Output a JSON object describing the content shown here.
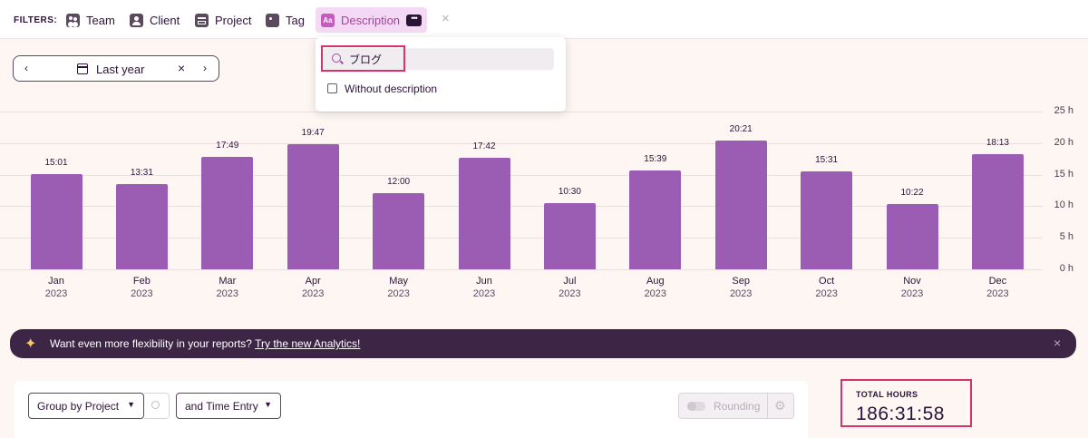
{
  "filters": {
    "label": "FILTERS:",
    "items": [
      {
        "label": "Team",
        "icon": "team-icon"
      },
      {
        "label": "Client",
        "icon": "client-icon"
      },
      {
        "label": "Project",
        "icon": "project-icon"
      },
      {
        "label": "Tag",
        "icon": "tag-icon"
      },
      {
        "label": "Description",
        "icon": "description-icon"
      }
    ],
    "description_icon_text": "Aa",
    "more_text": "•••",
    "clear_text": "×"
  },
  "dropdown": {
    "search_value": "ブログ",
    "checkbox_label": "Without description"
  },
  "date_picker": {
    "prev": "‹",
    "next": "›",
    "label": "Last year",
    "clear": "×"
  },
  "chart_data": {
    "type": "bar",
    "categories": [
      "Jan",
      "Feb",
      "Mar",
      "Apr",
      "May",
      "Jun",
      "Jul",
      "Aug",
      "Sep",
      "Oct",
      "Nov",
      "Dec"
    ],
    "years": [
      "2023",
      "2023",
      "2023",
      "2023",
      "2023",
      "2023",
      "2023",
      "2023",
      "2023",
      "2023",
      "2023",
      "2023"
    ],
    "values": [
      15.017,
      13.517,
      17.817,
      19.783,
      12.0,
      17.7,
      10.5,
      15.65,
      20.35,
      15.517,
      10.367,
      18.217
    ],
    "value_labels": [
      "15:01",
      "13:31",
      "17:49",
      "19:47",
      "12:00",
      "17:42",
      "10:30",
      "15:39",
      "20:21",
      "15:31",
      "10:22",
      "18:13"
    ],
    "yticks": [
      "0 h",
      "5 h",
      "10 h",
      "15 h",
      "20 h",
      "25 h"
    ],
    "ylim": [
      0,
      25
    ],
    "title": "",
    "xlabel": "",
    "ylabel": "",
    "color": "#9b5cb4"
  },
  "banner": {
    "text": "Want even more flexibility in your reports? ",
    "link": "Try the new Analytics!",
    "close": "×"
  },
  "panel": {
    "group_by": "Group by Project",
    "and_by": "and Time Entry",
    "rounding": "Rounding"
  },
  "totals": {
    "label": "TOTAL HOURS",
    "value": "186:31:58"
  }
}
